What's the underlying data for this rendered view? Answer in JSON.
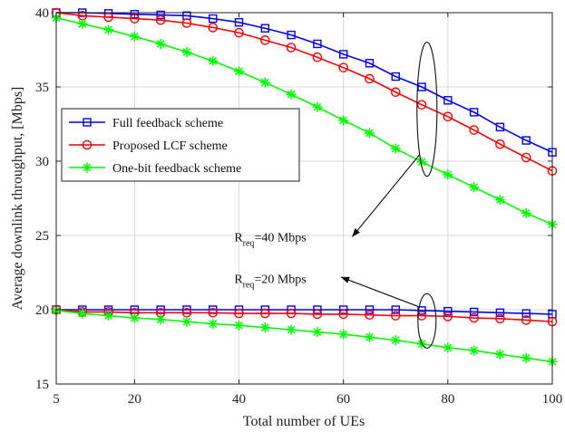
{
  "chart_data": {
    "type": "line",
    "xlabel": "Total number of UEs",
    "ylabel": "Average downlink throughput, [Mbps]",
    "xlim": [
      5,
      100
    ],
    "ylim": [
      15,
      40
    ],
    "xticks": [
      5,
      20,
      40,
      60,
      80,
      100
    ],
    "yticks": [
      15,
      20,
      25,
      30,
      35,
      40
    ],
    "grid": true,
    "legend_position": "upper-left",
    "x": [
      5,
      10,
      15,
      20,
      25,
      30,
      35,
      40,
      45,
      50,
      55,
      60,
      65,
      70,
      75,
      80,
      85,
      90,
      95,
      100
    ],
    "series": [
      {
        "name": "Full feedback scheme",
        "color": "#0000ff",
        "marker": "square",
        "values": [
          40.0,
          40.0,
          39.95,
          39.9,
          39.85,
          39.8,
          39.6,
          39.35,
          38.95,
          38.5,
          37.9,
          37.2,
          36.6,
          35.7,
          35.0,
          34.1,
          33.3,
          32.3,
          31.4,
          30.6
        ]
      },
      {
        "name": "Proposed LCF scheme",
        "color": "#ff0000",
        "marker": "circle",
        "values": [
          40.0,
          39.8,
          39.7,
          39.6,
          39.5,
          39.3,
          39.0,
          38.65,
          38.15,
          37.65,
          37.0,
          36.3,
          35.55,
          34.65,
          33.8,
          33.0,
          32.1,
          31.15,
          30.25,
          29.35
        ]
      },
      {
        "name": "One-bit feedback scheme",
        "color": "#00ff00",
        "marker": "asterisk",
        "values": [
          39.65,
          39.25,
          38.85,
          38.4,
          37.9,
          37.35,
          36.75,
          36.05,
          35.3,
          34.5,
          33.65,
          32.75,
          31.9,
          30.85,
          29.95,
          29.1,
          28.25,
          27.4,
          26.5,
          25.75
        ]
      },
      {
        "name": "Full feedback scheme",
        "color": "#0000ff",
        "marker": "square",
        "values": [
          20.0,
          20.0,
          20.0,
          20.0,
          20.0,
          20.0,
          20.0,
          20.0,
          20.0,
          20.0,
          20.0,
          20.0,
          20.0,
          20.0,
          19.95,
          19.9,
          19.85,
          19.8,
          19.75,
          19.7
        ]
      },
      {
        "name": "Proposed LCF scheme",
        "color": "#ff0000",
        "marker": "circle",
        "values": [
          20.0,
          19.85,
          19.85,
          19.8,
          19.8,
          19.8,
          19.8,
          19.75,
          19.75,
          19.75,
          19.7,
          19.7,
          19.65,
          19.6,
          19.6,
          19.55,
          19.45,
          19.4,
          19.3,
          19.2
        ]
      },
      {
        "name": "One-bit feedback scheme",
        "color": "#00ff00",
        "marker": "asterisk",
        "values": [
          19.95,
          19.75,
          19.6,
          19.45,
          19.35,
          19.2,
          19.05,
          18.95,
          18.8,
          18.65,
          18.5,
          18.35,
          18.15,
          17.95,
          17.7,
          17.45,
          17.25,
          17.0,
          16.75,
          16.5
        ]
      }
    ],
    "legend": [
      {
        "label": "Full feedback scheme",
        "color": "#0000ff",
        "marker": "square"
      },
      {
        "label": "Proposed LCF scheme",
        "color": "#ff0000",
        "marker": "circle"
      },
      {
        "label": "One-bit feedback scheme",
        "color": "#00ff00",
        "marker": "asterisk"
      }
    ],
    "annotations": [
      {
        "prefix": "R",
        "subscript": "req",
        "suffix": "=40 Mbps",
        "ellipse_at": [
          76,
          33.5
        ],
        "text_at": [
          45,
          24.6
        ]
      },
      {
        "prefix": "R",
        "subscript": "req",
        "suffix": "=20 Mbps",
        "ellipse_at": [
          76,
          19.25
        ],
        "text_at": [
          45,
          21.8
        ]
      }
    ]
  }
}
